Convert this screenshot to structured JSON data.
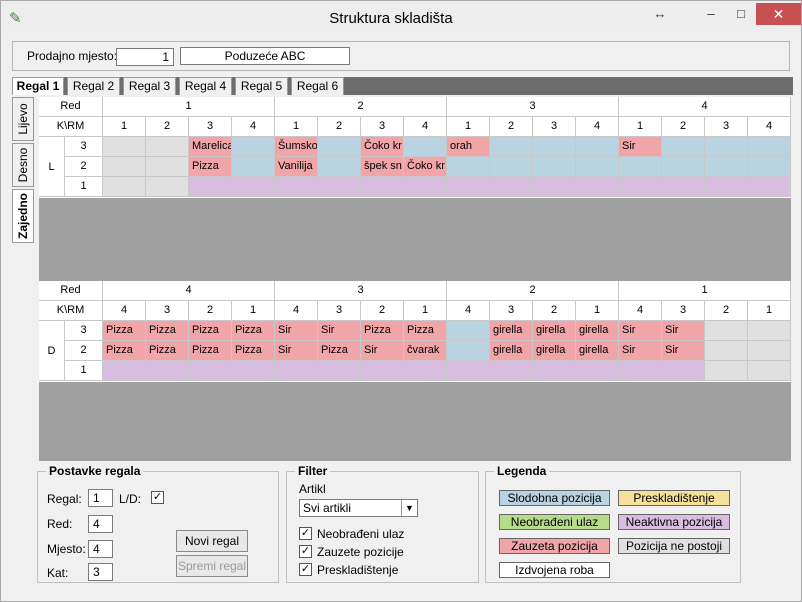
{
  "window": {
    "title": "Struktura skladišta",
    "icon": "broom-icon"
  },
  "prodajno": {
    "label": "Prodajno mjesto:",
    "value": "1",
    "name": "Poduzeće ABC"
  },
  "tabs": [
    "Regal 1",
    "Regal 2",
    "Regal 3",
    "Regal 4",
    "Regal 5",
    "Regal 6"
  ],
  "vtabs": [
    "Lijevo",
    "Desno",
    "Zajedno"
  ],
  "colors": {
    "free": "#b9d3e3",
    "occupied": "#f1a5a8",
    "inactive": "#d8bde0",
    "none": "#e0e0e0",
    "new": "#b6db8b",
    "move": "#f5e19a"
  },
  "grid_top": {
    "corner_red": "Red",
    "corner_krm": "K\\RM",
    "side": "L",
    "groups": [
      "1",
      "2",
      "3",
      "4"
    ],
    "cols": [
      "1",
      "2",
      "3",
      "4",
      "1",
      "2",
      "3",
      "4",
      "1",
      "2",
      "3",
      "4",
      "1",
      "2",
      "3",
      "4"
    ],
    "rows": [
      {
        "k": "3",
        "cells": [
          [
            "",
            "none"
          ],
          [
            "",
            "none"
          ],
          [
            "Marelica",
            "occupied"
          ],
          [
            "",
            "free"
          ],
          [
            "Šumsko",
            "occupied"
          ],
          [
            "",
            "free"
          ],
          [
            "Čoko kr",
            "occupied"
          ],
          [
            "",
            "free"
          ],
          [
            "orah",
            "occupied"
          ],
          [
            "",
            "free"
          ],
          [
            "",
            "free"
          ],
          [
            "",
            "free"
          ],
          [
            "Sir",
            "occupied"
          ],
          [
            "",
            "free"
          ],
          [
            "",
            "free"
          ],
          [
            "",
            "free"
          ]
        ]
      },
      {
        "k": "2",
        "cells": [
          [
            "",
            "none"
          ],
          [
            "",
            "none"
          ],
          [
            "Pizza",
            "occupied"
          ],
          [
            "",
            "free"
          ],
          [
            "Vanilija",
            "occupied"
          ],
          [
            "",
            "free"
          ],
          [
            "špek sn",
            "occupied"
          ],
          [
            "Čoko kr",
            "occupied"
          ],
          [
            "",
            "free"
          ],
          [
            "",
            "free"
          ],
          [
            "",
            "free"
          ],
          [
            "",
            "free"
          ],
          [
            "",
            "free"
          ],
          [
            "",
            "free"
          ],
          [
            "",
            "free"
          ],
          [
            "",
            "free"
          ]
        ]
      },
      {
        "k": "1",
        "cells": [
          [
            "",
            "none"
          ],
          [
            "",
            "none"
          ],
          [
            "",
            "inactive"
          ],
          [
            "",
            "inactive"
          ],
          [
            "",
            "inactive"
          ],
          [
            "",
            "inactive"
          ],
          [
            "",
            "inactive"
          ],
          [
            "",
            "inactive"
          ],
          [
            "",
            "inactive"
          ],
          [
            "",
            "inactive"
          ],
          [
            "",
            "inactive"
          ],
          [
            "",
            "inactive"
          ],
          [
            "",
            "inactive"
          ],
          [
            "",
            "inactive"
          ],
          [
            "",
            "inactive"
          ],
          [
            "",
            "inactive"
          ]
        ]
      }
    ]
  },
  "grid_bottom": {
    "corner_red": "Red",
    "corner_krm": "K\\RM",
    "side": "D",
    "groups": [
      "4",
      "3",
      "2",
      "1"
    ],
    "cols": [
      "4",
      "3",
      "2",
      "1",
      "4",
      "3",
      "2",
      "1",
      "4",
      "3",
      "2",
      "1",
      "4",
      "3",
      "2",
      "1"
    ],
    "rows": [
      {
        "k": "3",
        "cells": [
          [
            "Pizza",
            "occupied"
          ],
          [
            "Pizza",
            "occupied"
          ],
          [
            "Pizza",
            "occupied"
          ],
          [
            "Pizza",
            "occupied"
          ],
          [
            "Sir",
            "occupied"
          ],
          [
            "Sir",
            "occupied"
          ],
          [
            "Pizza",
            "occupied"
          ],
          [
            "Pizza",
            "occupied"
          ],
          [
            "",
            "free"
          ],
          [
            "girella",
            "occupied"
          ],
          [
            "girella",
            "occupied"
          ],
          [
            "girella",
            "occupied"
          ],
          [
            "Sir",
            "occupied"
          ],
          [
            "Sir",
            "occupied"
          ],
          [
            "",
            "none"
          ],
          [
            "",
            "none"
          ]
        ]
      },
      {
        "k": "2",
        "cells": [
          [
            "Pizza",
            "occupied"
          ],
          [
            "Pizza",
            "occupied"
          ],
          [
            "Pizza",
            "occupied"
          ],
          [
            "Pizza",
            "occupied"
          ],
          [
            "Sir",
            "occupied"
          ],
          [
            "Pizza",
            "occupied"
          ],
          [
            "Sir",
            "occupied"
          ],
          [
            "čvarak",
            "occupied"
          ],
          [
            "",
            "free"
          ],
          [
            "girella",
            "occupied"
          ],
          [
            "girella",
            "occupied"
          ],
          [
            "girella",
            "occupied"
          ],
          [
            "Sir",
            "occupied"
          ],
          [
            "Sir",
            "occupied"
          ],
          [
            "",
            "none"
          ],
          [
            "",
            "none"
          ]
        ]
      },
      {
        "k": "1",
        "cells": [
          [
            "",
            "inactive"
          ],
          [
            "",
            "inactive"
          ],
          [
            "",
            "inactive"
          ],
          [
            "",
            "inactive"
          ],
          [
            "",
            "inactive"
          ],
          [
            "",
            "inactive"
          ],
          [
            "",
            "inactive"
          ],
          [
            "",
            "inactive"
          ],
          [
            "",
            "inactive"
          ],
          [
            "",
            "inactive"
          ],
          [
            "",
            "inactive"
          ],
          [
            "",
            "inactive"
          ],
          [
            "",
            "inactive"
          ],
          [
            "",
            "inactive"
          ],
          [
            "",
            "none"
          ],
          [
            "",
            "none"
          ]
        ]
      }
    ]
  },
  "postavke": {
    "title": "Postavke regala",
    "regal_label": "Regal:",
    "regal": "1",
    "ld_label": "L/D:",
    "red_label": "Red:",
    "red": "4",
    "mjesto_label": "Mjesto:",
    "mjesto": "4",
    "kat_label": "Kat:",
    "kat": "3",
    "new_btn": "Novi regal",
    "save_btn": "Spremi regal"
  },
  "filter": {
    "title": "Filter",
    "artikl_label": "Artikl",
    "artikl": "Svi artikli",
    "c1": "Neobrađeni ulaz",
    "c2": "Zauzete pozicije",
    "c3": "Preskladištenje"
  },
  "legenda": {
    "title": "Legenda",
    "l1": "Slodobna pozicija",
    "l2": "Preskladištenje",
    "l3": "Neobrađeni ulaz",
    "l4": "Neaktivna pozicija",
    "l5": "Zauzeta pozicija",
    "l6": "Pozicija ne postoji",
    "l7": "Izdvojena roba"
  }
}
